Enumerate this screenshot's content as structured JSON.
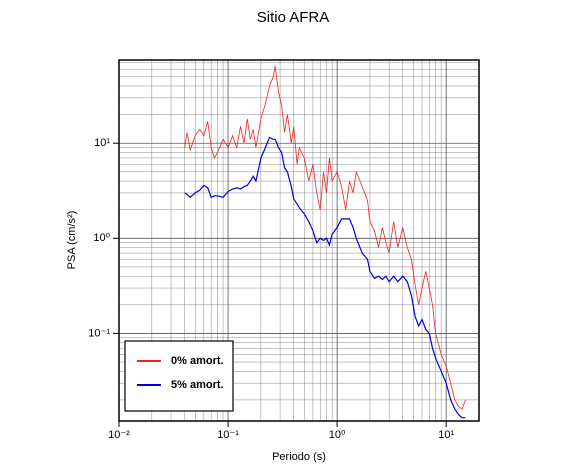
{
  "chart_data": {
    "type": "line",
    "title": "Sitio AFRA",
    "x_label": "Periodo (s)",
    "y_label": "PSA (cm/s²)",
    "log_x": true,
    "log_y": true,
    "grid": true,
    "minor_grid": true,
    "legend": "lower left",
    "xlim": [
      0.01,
      20
    ],
    "ylim": [
      0.012,
      75
    ],
    "xticks": [
      {
        "value": 0.01,
        "label": "10⁻²"
      },
      {
        "value": 0.1,
        "label": "10⁻¹"
      },
      {
        "value": 1,
        "label": "10⁰"
      },
      {
        "value": 10,
        "label": "10¹"
      }
    ],
    "yticks": [
      {
        "value": 0.1,
        "label": "10⁻¹"
      },
      {
        "value": 1,
        "label": "10⁰"
      },
      {
        "value": 10,
        "label": "10¹"
      }
    ],
    "x": [
      0.04,
      0.042,
      0.045,
      0.05,
      0.055,
      0.06,
      0.065,
      0.07,
      0.075,
      0.08,
      0.09,
      0.1,
      0.11,
      0.12,
      0.13,
      0.14,
      0.15,
      0.16,
      0.17,
      0.18,
      0.2,
      0.22,
      0.24,
      0.26,
      0.27,
      0.29,
      0.31,
      0.33,
      0.35,
      0.38,
      0.4,
      0.43,
      0.45,
      0.5,
      0.55,
      0.6,
      0.65,
      0.7,
      0.75,
      0.8,
      0.85,
      0.9,
      1.0,
      1.1,
      1.2,
      1.3,
      1.4,
      1.5,
      1.7,
      1.9,
      2.0,
      2.2,
      2.4,
      2.6,
      2.8,
      3.0,
      3.3,
      3.6,
      4.0,
      4.4,
      4.8,
      5.2,
      5.6,
      6.0,
      6.5,
      7.0,
      7.5,
      8.0,
      9.0,
      10,
      11,
      12,
      13,
      14,
      15
    ],
    "series": [
      {
        "name": "0% amort.",
        "color": "#ee2222",
        "width": 0.8,
        "values": [
          9,
          13,
          8.5,
          12,
          14,
          12,
          17,
          9,
          7,
          8,
          11,
          9,
          12,
          9,
          15,
          10,
          18,
          11,
          14,
          9,
          18,
          26,
          40,
          50,
          65,
          35,
          25,
          13,
          20,
          10,
          15,
          6,
          9,
          7,
          4,
          6,
          3,
          2,
          5,
          3,
          7,
          4,
          5,
          3.5,
          2,
          4,
          3,
          5,
          3.5,
          2.5,
          1.5,
          1.2,
          0.8,
          1.3,
          0.9,
          0.7,
          1.5,
          0.8,
          1.3,
          0.8,
          0.6,
          0.32,
          0.2,
          0.3,
          0.45,
          0.3,
          0.2,
          0.1,
          0.06,
          0.045,
          0.03,
          0.02,
          0.017,
          0.016,
          0.02
        ]
      },
      {
        "name": "5% amort.",
        "color": "#0000dd",
        "width": 1.2,
        "values": [
          3,
          2.9,
          2.7,
          3,
          3.2,
          3.6,
          3.4,
          2.7,
          2.8,
          2.8,
          2.7,
          3.1,
          3.3,
          3.4,
          3.3,
          3.5,
          3.6,
          4,
          4.5,
          4,
          7,
          9,
          11.5,
          11,
          11,
          9,
          8,
          5.5,
          5,
          3.5,
          2.6,
          2.3,
          2.1,
          1.8,
          1.5,
          1.2,
          0.9,
          1.0,
          0.95,
          1.0,
          0.85,
          1.1,
          1.3,
          1.6,
          1.6,
          1.6,
          1.3,
          1.0,
          0.7,
          0.6,
          0.45,
          0.38,
          0.4,
          0.37,
          0.4,
          0.35,
          0.4,
          0.35,
          0.4,
          0.35,
          0.25,
          0.15,
          0.12,
          0.14,
          0.11,
          0.1,
          0.07,
          0.055,
          0.04,
          0.03,
          0.02,
          0.016,
          0.014,
          0.013,
          0.013
        ]
      }
    ]
  }
}
